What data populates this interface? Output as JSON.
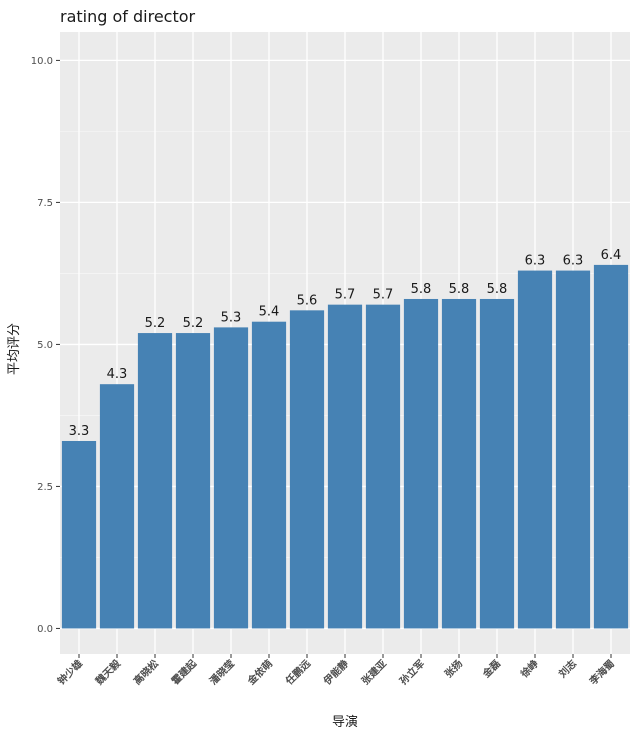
{
  "chart_data": {
    "type": "bar",
    "title": "rating of director",
    "xlabel": "导演",
    "ylabel": "平均评分",
    "categories": [
      "钟少雄",
      "魏天毅",
      "高晓松",
      "霍建起",
      "潘晓莹",
      "金依萌",
      "任鹏远",
      "伊能静",
      "张建亚",
      "孙立军",
      "张扬",
      "金磊",
      "徐峥",
      "刘志",
      "李海蜀"
    ],
    "values": [
      3.3,
      4.3,
      5.2,
      5.2,
      5.3,
      5.4,
      5.6,
      5.7,
      5.7,
      5.8,
      5.8,
      5.8,
      6.3,
      6.3,
      6.4
    ],
    "value_labels": [
      "3.3",
      "4.3",
      "5.2",
      "5.2",
      "5.3",
      "5.4",
      "5.6",
      "5.7",
      "5.7",
      "5.8",
      "5.8",
      "5.8",
      "6.3",
      "6.3",
      "6.4"
    ],
    "ylim": [
      -0.45,
      10.5
    ],
    "yticks": [
      0,
      2.5,
      5,
      7.5,
      10
    ],
    "ytick_labels": [
      "0.0",
      "2.5",
      "5.0",
      "7.5",
      "10.0"
    ],
    "grid": true,
    "legend": "none",
    "colors": {
      "bar": "#4682b4",
      "panel": "#ebebeb",
      "grid_major": "#ffffff",
      "grid_minor": "#f5f5f5"
    }
  }
}
